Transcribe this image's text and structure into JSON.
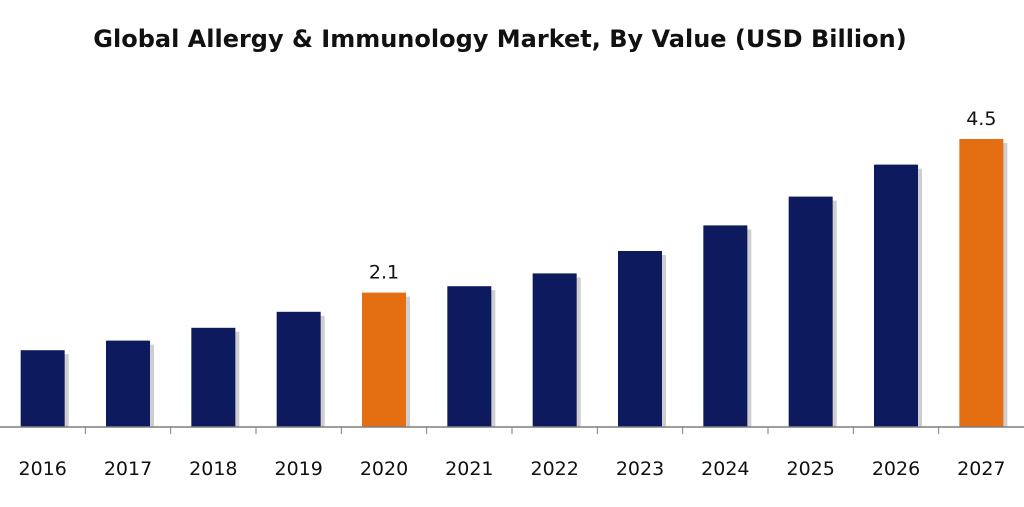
{
  "chart_data": {
    "type": "bar",
    "title": "Global Allergy & Immunology Market, By Value (USD Billion)",
    "categories": [
      "2016",
      "2017",
      "2018",
      "2019",
      "2020",
      "2021",
      "2022",
      "2023",
      "2024",
      "2025",
      "2026",
      "2027"
    ],
    "values": [
      1.2,
      1.35,
      1.55,
      1.8,
      2.1,
      2.2,
      2.4,
      2.75,
      3.15,
      3.6,
      4.1,
      4.5
    ],
    "data_labels": {
      "2020": "2.1",
      "2027": "4.5"
    },
    "highlight_categories": [
      "2020",
      "2027"
    ],
    "ylim": [
      0,
      4.9
    ],
    "xlabel": "",
    "ylabel": "",
    "grid": false,
    "legend": "none",
    "colors": {
      "default": "#0d1b5e",
      "highlight": "#e46f12",
      "axis": "#7f7f7f"
    }
  }
}
